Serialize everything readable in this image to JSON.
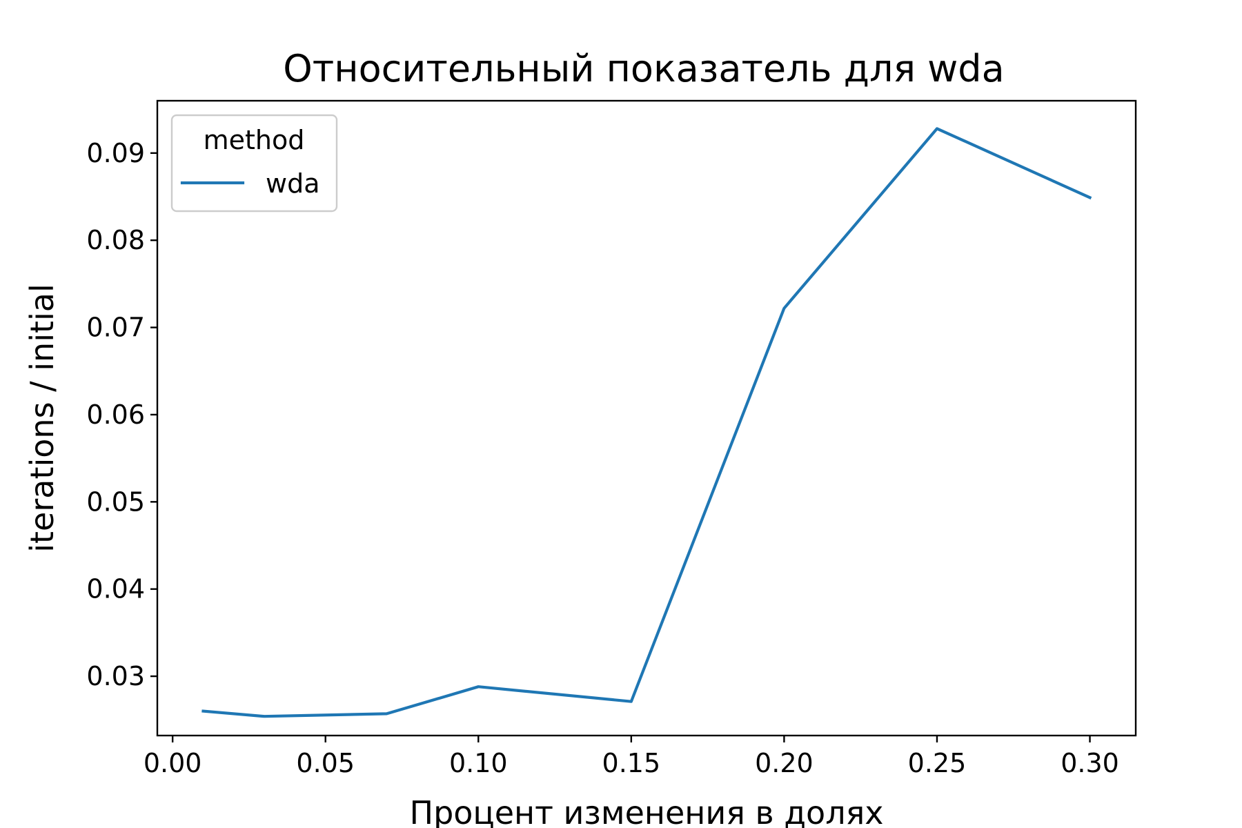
{
  "chart_data": {
    "type": "line",
    "title": "Относительный показатель для wda",
    "xlabel": "Процент изменения в долях",
    "ylabel": "iterations / initial",
    "xlim": [
      -0.005,
      0.315
    ],
    "ylim": [
      0.0232,
      0.096
    ],
    "xticks": [
      0.0,
      0.05,
      0.1,
      0.15,
      0.2,
      0.25,
      0.3
    ],
    "xtick_labels": [
      "0.00",
      "0.05",
      "0.10",
      "0.15",
      "0.20",
      "0.25",
      "0.30"
    ],
    "yticks": [
      0.03,
      0.04,
      0.05,
      0.06,
      0.07,
      0.08,
      0.09
    ],
    "ytick_labels": [
      "0.03",
      "0.04",
      "0.05",
      "0.06",
      "0.07",
      "0.08",
      "0.09"
    ],
    "grid": false,
    "legend": {
      "title": "method",
      "placement": "upper-left"
    },
    "series": [
      {
        "name": "wda",
        "color": "#1f77b4",
        "x": [
          0.01,
          0.03,
          0.07,
          0.1,
          0.15,
          0.2,
          0.25,
          0.3
        ],
        "y": [
          0.026,
          0.0254,
          0.0257,
          0.0288,
          0.0271,
          0.0722,
          0.0928,
          0.0849
        ]
      }
    ]
  }
}
